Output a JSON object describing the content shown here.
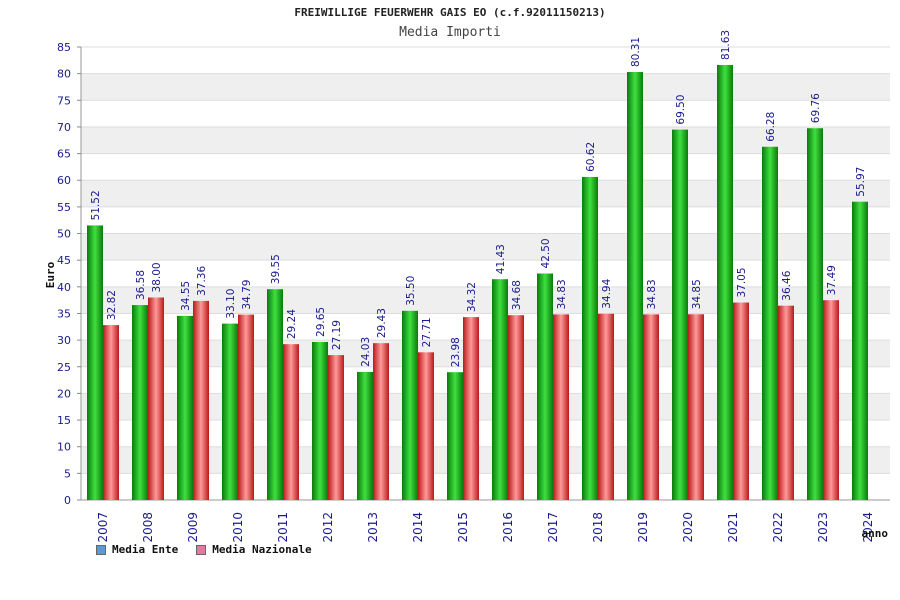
{
  "header": {
    "title": "FREIWILLIGE FEUERWEHR GAIS EO (c.f.92011150213)",
    "subtitle": "Media Importi"
  },
  "legend": {
    "items": [
      {
        "label": "Media Ente",
        "color": "#5b9bd5"
      },
      {
        "label": "Media Nazionale",
        "color": "#e07aa0"
      }
    ]
  },
  "colors": {
    "ente_bar": "#16b016",
    "nazionale_bar": "#e23a3a",
    "label_text": "#1a1a8c",
    "tick_text": "#1a1a8c"
  },
  "chart_data": {
    "type": "bar",
    "title": "Media Importi",
    "xlabel": "anno",
    "ylabel": "Euro",
    "ylim": [
      0,
      85
    ],
    "ytick_step": 5,
    "grid": true,
    "legend_position": "bottom-left",
    "categories": [
      "2007",
      "2008",
      "2009",
      "2010",
      "2011",
      "2012",
      "2013",
      "2014",
      "2015",
      "2016",
      "2017",
      "2018",
      "2019",
      "2020",
      "2021",
      "2022",
      "2023",
      "2024"
    ],
    "series": [
      {
        "name": "Media Ente",
        "values": [
          51.52,
          36.58,
          34.55,
          33.1,
          39.55,
          29.65,
          24.03,
          35.5,
          23.98,
          41.43,
          42.5,
          60.62,
          80.31,
          69.5,
          81.63,
          66.28,
          69.76,
          55.97
        ],
        "labels": [
          "51.52",
          "36.58",
          "34.55",
          "33.10",
          "39.55",
          "29.65",
          "24.03",
          "35.50",
          "23.98",
          "41.43",
          "42.50",
          "60.62",
          "80.31",
          "69.50",
          "81.63",
          "66.28",
          "69.76",
          "55.97"
        ]
      },
      {
        "name": "Media Nazionale",
        "values": [
          32.82,
          38.0,
          37.36,
          34.79,
          29.24,
          27.19,
          29.43,
          27.71,
          34.32,
          34.68,
          34.83,
          34.94,
          34.83,
          34.85,
          37.05,
          36.46,
          37.49,
          null
        ],
        "labels": [
          "32.82",
          "38.00",
          "37.36",
          "34.79",
          "29.24",
          "27.19",
          "29.43",
          "27.71",
          "34.32",
          "34.68",
          "34.83",
          "34.94",
          "34.83",
          "34.85",
          "37.05",
          "36.46",
          "37.49",
          ""
        ]
      }
    ]
  }
}
